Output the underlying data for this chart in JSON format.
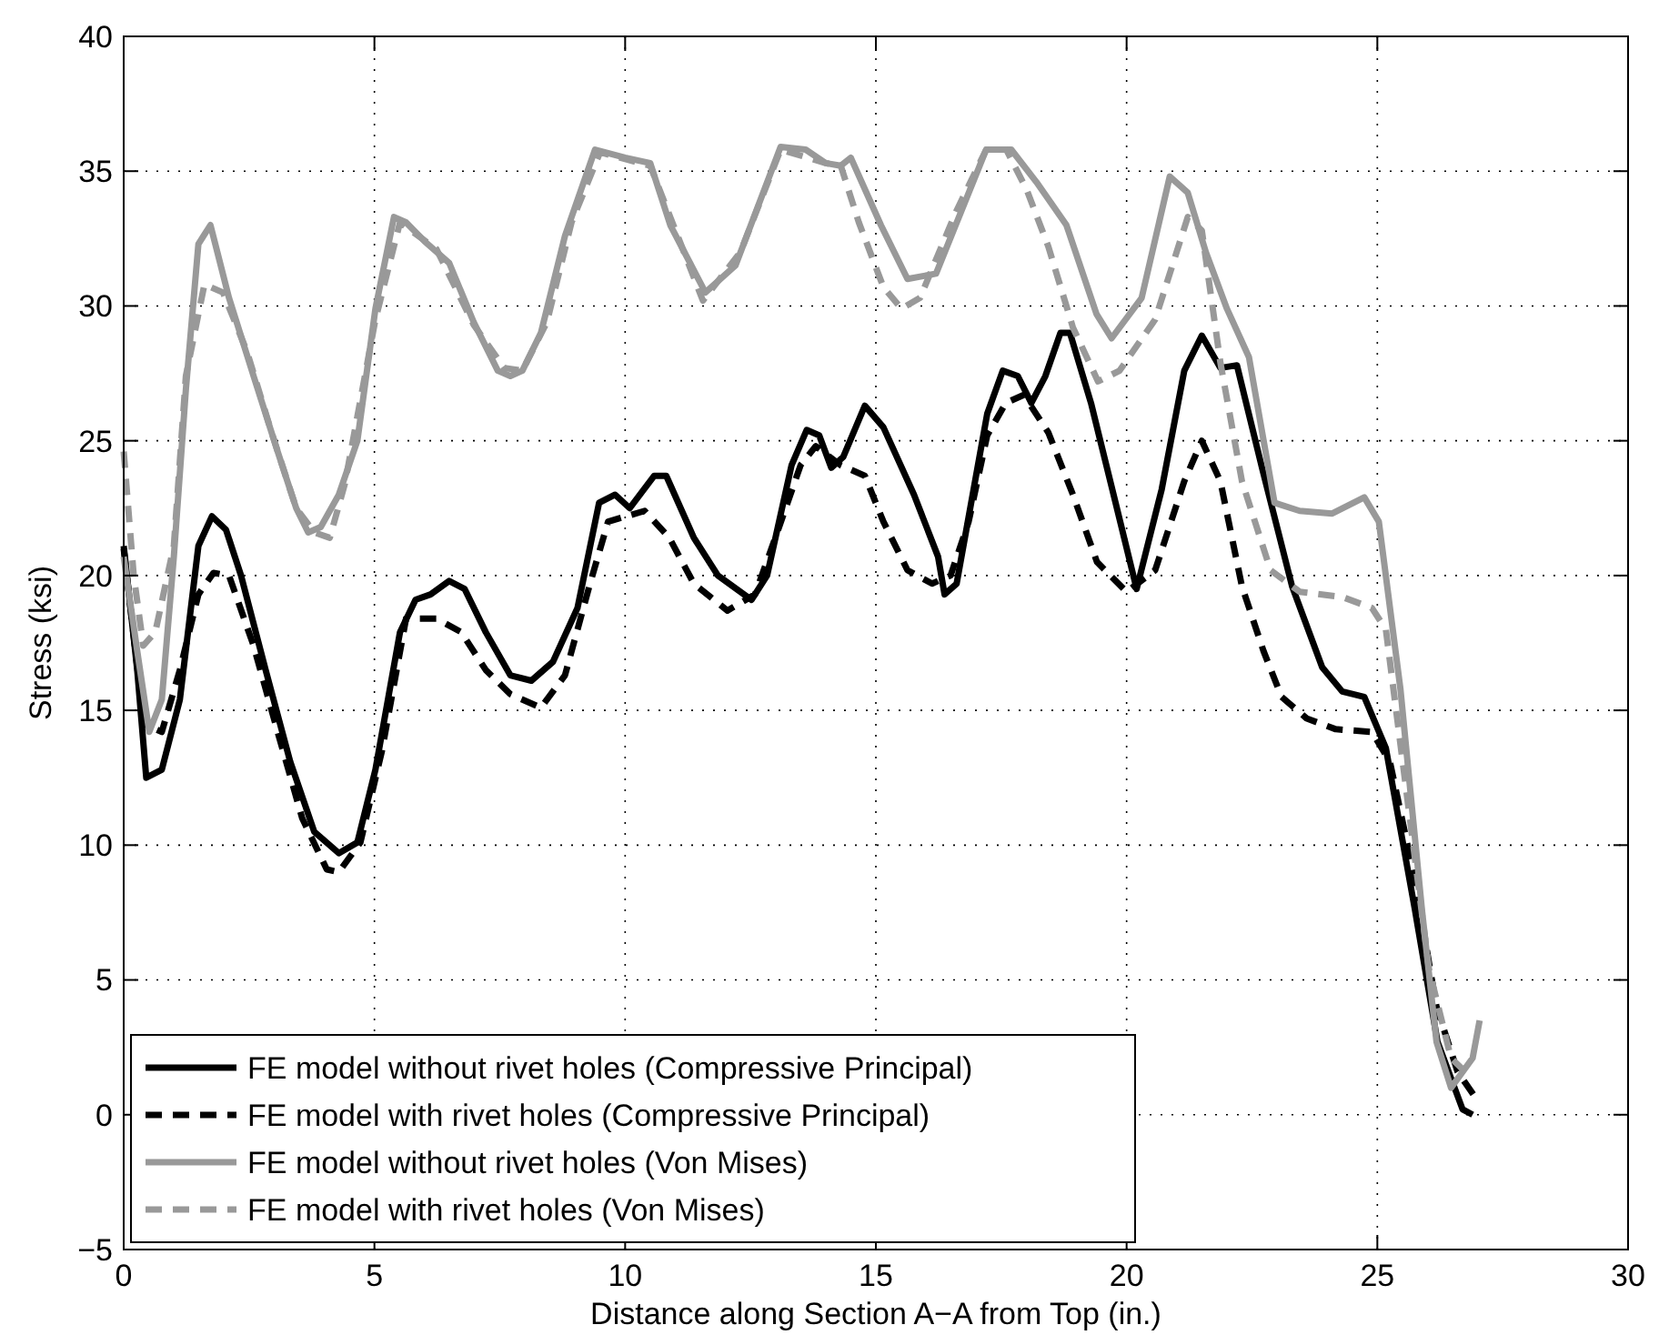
{
  "chart_data": {
    "type": "line",
    "xlabel": "Distance along Section A−A from Top (in.)",
    "ylabel": "Stress (ksi)",
    "xlim": [
      0,
      30
    ],
    "ylim": [
      -5,
      40
    ],
    "xticks": [
      0,
      5,
      10,
      15,
      20,
      25,
      30
    ],
    "yticks": [
      {
        "value": -5,
        "label": "−5"
      },
      0,
      5,
      10,
      15,
      20,
      25,
      30,
      35,
      40
    ],
    "grid": true,
    "legend": "bottom left",
    "series": [
      {
        "name": "FE model without rivet holes (Compressive Principal)",
        "color": "#000000",
        "line_style": "solid",
        "x": [
          0,
          0.27,
          0.45,
          0.76,
          1.12,
          1.49,
          1.76,
          2.04,
          2.34,
          2.83,
          3.32,
          3.8,
          4.29,
          4.66,
          5.02,
          5.51,
          5.82,
          6.12,
          6.49,
          6.8,
          7.22,
          7.71,
          8.13,
          8.56,
          9.05,
          9.48,
          9.8,
          10.09,
          10.58,
          10.82,
          11.37,
          11.85,
          12.52,
          12.83,
          13.32,
          13.62,
          13.87,
          14.11,
          14.35,
          14.78,
          15.15,
          15.76,
          16.24,
          16.37,
          16.61,
          17.22,
          17.53,
          17.83,
          18.1,
          18.38,
          18.68,
          18.87,
          19.29,
          19.78,
          20.2,
          20.7,
          21.15,
          21.5,
          21.87,
          22.2,
          22.7,
          23.3,
          23.9,
          24.3,
          24.74,
          25.17,
          25.75,
          26.2,
          26.7,
          26.9
        ],
        "values": [
          21.1,
          16.5,
          12.5,
          12.8,
          15.4,
          21.1,
          22.2,
          21.7,
          20,
          16.5,
          13.1,
          10.5,
          9.7,
          10.1,
          12.8,
          17.9,
          19.1,
          19.3,
          19.8,
          19.5,
          17.9,
          16.3,
          16.1,
          16.8,
          18.8,
          22.7,
          23,
          22.5,
          23.7,
          23.7,
          21.4,
          20,
          19.1,
          20,
          24.1,
          25.4,
          25.2,
          24,
          24.4,
          26.3,
          25.5,
          23,
          20.7,
          19.3,
          19.7,
          26,
          27.6,
          27.4,
          26.4,
          27.4,
          29,
          29,
          26.4,
          22.7,
          19.5,
          23.2,
          27.6,
          28.9,
          27.7,
          27.8,
          24,
          19.6,
          16.6,
          15.7,
          15.5,
          13.6,
          7.6,
          2.7,
          0.2,
          0
        ]
      },
      {
        "name": "FE model with rivet holes (Compressive Principal)",
        "color": "#000000",
        "line_style": "dashed",
        "x": [
          0,
          0.4,
          0.76,
          1.12,
          1.49,
          1.79,
          2.1,
          2.59,
          3.07,
          3.56,
          4.05,
          4.29,
          4.72,
          5.15,
          5.63,
          6.24,
          6.73,
          7.22,
          7.71,
          8.32,
          8.8,
          9.3,
          9.66,
          10.39,
          10.88,
          11.37,
          12.04,
          12.59,
          13.07,
          13.5,
          13.8,
          14.29,
          14.78,
          15.15,
          15.63,
          16.12,
          16.49,
          16.85,
          17.22,
          17.59,
          17.95,
          18.44,
          18.93,
          19.41,
          20,
          20.57,
          21.15,
          21.5,
          21.87,
          22.3,
          22.73,
          23.09,
          23.59,
          24.17,
          24.89,
          25.25,
          25.75,
          26.18,
          26.6,
          26.97
        ],
        "values": [
          21,
          14.5,
          14.2,
          16.5,
          19.3,
          20.1,
          20,
          17.4,
          14.2,
          11,
          9.1,
          9,
          10.1,
          13.5,
          18.4,
          18.4,
          17.9,
          16.5,
          15.6,
          15.1,
          16.3,
          19.7,
          22,
          22.4,
          21.4,
          19.7,
          18.7,
          19.3,
          21.8,
          24.1,
          24.8,
          24.1,
          23.7,
          22,
          20.2,
          19.7,
          20,
          22,
          25.2,
          26.4,
          26.7,
          25.3,
          23,
          20.5,
          19.4,
          20.2,
          23.5,
          25,
          23.5,
          19.6,
          17.2,
          15.5,
          14.7,
          14.3,
          14.2,
          13.1,
          8.7,
          4,
          1.6,
          0.6
        ]
      },
      {
        "name": "FE model without rivet holes (Von Mises)",
        "color": "#999999",
        "line_style": "solid",
        "x": [
          0,
          0.27,
          0.51,
          0.76,
          1,
          1.24,
          1.49,
          1.73,
          2.1,
          2.59,
          3.07,
          3.44,
          3.68,
          3.93,
          4.29,
          4.66,
          5.02,
          5.39,
          5.63,
          6,
          6.49,
          6.98,
          7.46,
          7.71,
          7.95,
          8.32,
          8.8,
          9.4,
          10,
          10.5,
          10.9,
          11.6,
          12.2,
          13.1,
          13.6,
          14,
          14.3,
          14.5,
          15.1,
          15.63,
          16.2,
          16.7,
          17.2,
          17.7,
          18.2,
          18.8,
          19.4,
          19.7,
          20.3,
          20.86,
          21.22,
          21.58,
          22,
          22.44,
          22.95,
          23.45,
          24.1,
          24.74,
          25.03,
          25.46,
          25.89,
          26.18,
          26.47,
          26.9,
          27.04
        ],
        "values": [
          20.7,
          17.2,
          14.2,
          15.4,
          20.7,
          26.9,
          32.3,
          33,
          30.3,
          27.4,
          24.6,
          22.5,
          21.6,
          21.8,
          23,
          25,
          29.9,
          33.3,
          33.1,
          32.4,
          31.6,
          29.4,
          27.6,
          27.4,
          27.6,
          29,
          32.6,
          35.8,
          35.5,
          35.3,
          33,
          30.5,
          31.5,
          35.9,
          35.8,
          35.3,
          35.2,
          35.5,
          33,
          31,
          31.2,
          33.5,
          35.8,
          35.8,
          34.6,
          33,
          29.7,
          28.8,
          30.3,
          34.8,
          34.2,
          32,
          29.9,
          28.1,
          22.7,
          22.4,
          22.3,
          22.9,
          22,
          15.8,
          7.6,
          2.7,
          1,
          2.1,
          3.5
        ]
      },
      {
        "name": "FE model with rivet holes (Von Mises)",
        "color": "#999999",
        "line_style": "dashed",
        "x": [
          0,
          0.2,
          0.39,
          0.63,
          1,
          1.24,
          1.61,
          1.98,
          2.46,
          2.95,
          3.44,
          3.8,
          4.11,
          4.41,
          5.02,
          5.51,
          6.24,
          6.98,
          7.59,
          7.95,
          8.44,
          8.93,
          9.5,
          10.5,
          11.55,
          12.3,
          13.1,
          14,
          14.3,
          14.66,
          15.15,
          15.51,
          15.88,
          16.6,
          17.2,
          17.6,
          18.01,
          18.44,
          18.93,
          19.43,
          19.86,
          20.57,
          21.22,
          21.5,
          21.87,
          22.3,
          22.87,
          23.45,
          24.31,
          24.89,
          25.17,
          25.6,
          26.03,
          26.47,
          26.75
        ],
        "values": [
          24.6,
          20,
          17.4,
          17.9,
          21.1,
          27.4,
          30.8,
          30.5,
          28.3,
          25.3,
          22.5,
          21.6,
          21.4,
          23.4,
          29.5,
          33.1,
          32.1,
          29.3,
          27.7,
          27.6,
          29.4,
          33.1,
          35.7,
          35.2,
          30.2,
          32,
          35.8,
          35.3,
          35.2,
          33.1,
          30.7,
          29.9,
          30.3,
          33.5,
          35.8,
          35.8,
          34.3,
          32.2,
          29.2,
          27.2,
          27.6,
          29.5,
          33.3,
          32.8,
          27.9,
          23.5,
          20.2,
          19.4,
          19.2,
          18.8,
          18,
          11.7,
          5.4,
          2.1,
          1.6
        ]
      }
    ]
  }
}
